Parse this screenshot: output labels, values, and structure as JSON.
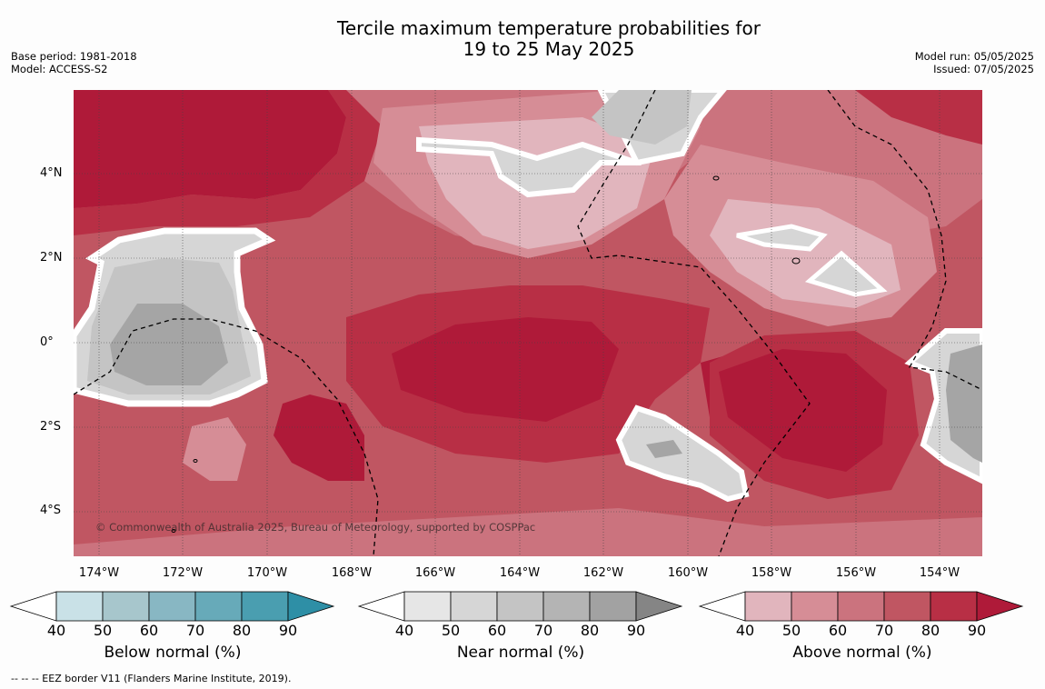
{
  "title_line1": "Tercile maximum temperature probabilities for",
  "title_line2": "19 to 25 May 2025",
  "base_period": "Base period: 1981-2018",
  "model": "Model: ACCESS-S2",
  "model_run": "Model run: 05/05/2025",
  "issued": "Issued: 07/05/2025",
  "lat_labels": [
    "4°N",
    "2°N",
    "0°",
    "2°S",
    "4°S"
  ],
  "lon_labels": [
    "174°W",
    "172°W",
    "170°W",
    "168°W",
    "166°W",
    "164°W",
    "162°W",
    "160°W",
    "158°W",
    "156°W",
    "154°W"
  ],
  "copyright": "© Commonwealth of Australia 2025, Bureau of Meteorology, supported by COSPPac",
  "colorbars": [
    {
      "label": "Below normal (%)",
      "ticks": [
        "40",
        "50",
        "60",
        "70",
        "80",
        "90"
      ],
      "colors": [
        "#ffffff",
        "#c9e1e7",
        "#a7c6cc",
        "#88b7c3",
        "#67aab9",
        "#4a9eb0",
        "#2e8fa6"
      ]
    },
    {
      "label": "Near normal (%)",
      "ticks": [
        "40",
        "50",
        "60",
        "70",
        "80",
        "90"
      ],
      "colors": [
        "#ffffff",
        "#e6e6e6",
        "#d6d6d6",
        "#c4c4c4",
        "#b4b4b4",
        "#a2a2a2",
        "#858585"
      ]
    },
    {
      "label": "Above normal (%)",
      "ticks": [
        "40",
        "50",
        "60",
        "70",
        "80",
        "90"
      ],
      "colors": [
        "#ffffff",
        "#e1b5bd",
        "#d68d96",
        "#cb737e",
        "#c05662",
        "#b82f45",
        "#af1a39"
      ]
    }
  ],
  "footnote": "--  --  -- EEZ border V11 (Flanders Marine Institute, 2019).",
  "map_colors": {
    "above_40": "#e1b5bd",
    "above_50": "#d68d96",
    "above_60": "#cb737e",
    "above_70": "#c05662",
    "above_80": "#b82f45",
    "above_90": "#af1a39",
    "near_50": "#d6d6d6",
    "near_60": "#c4c4c4",
    "near_70": "#a5a5a5"
  }
}
